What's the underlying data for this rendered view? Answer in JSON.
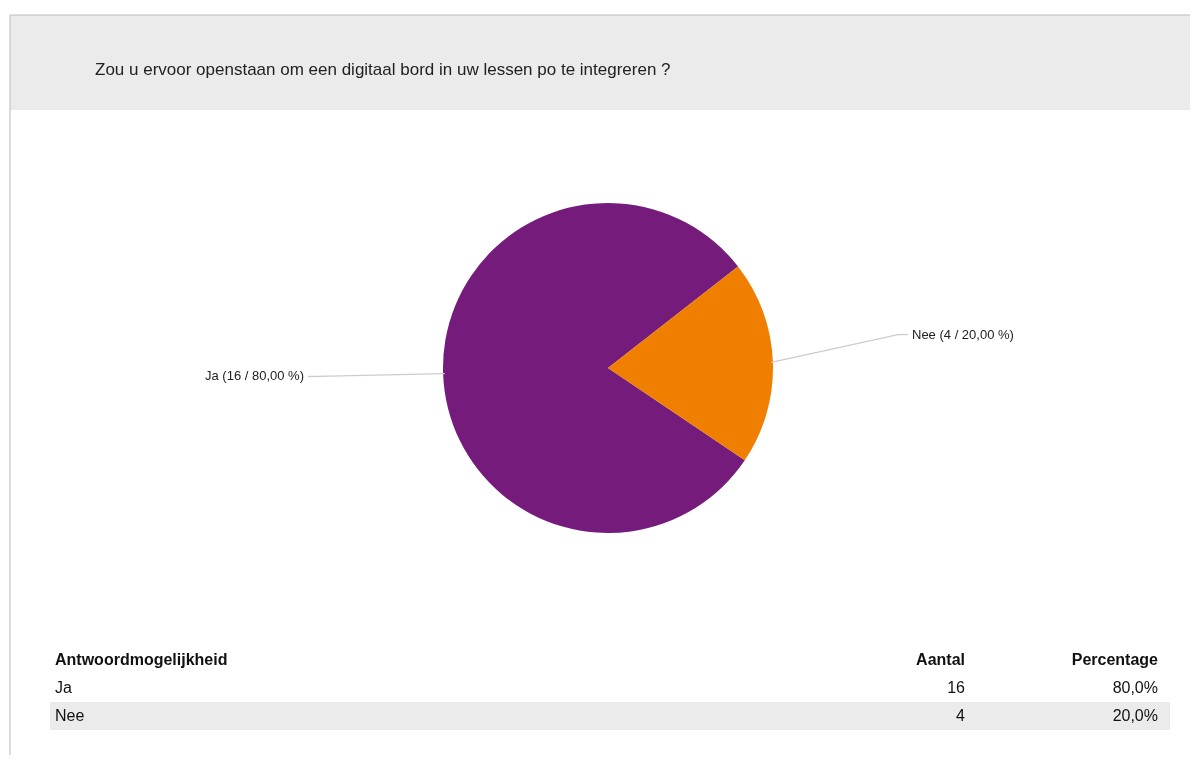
{
  "chart_data": {
    "type": "pie",
    "title": "Zou u ervoor openstaan om een digitaal bord in uw lessen po te integreren ?",
    "categories": [
      "Ja",
      "Nee"
    ],
    "values": [
      16,
      4
    ],
    "colors": [
      "#741b7c",
      "#f07f00"
    ],
    "value_labels": [
      "(16 / 80,00 %)",
      "(4 / 20,00 %)"
    ],
    "annotations": [
      "Antwoordmogelijkheid",
      "Aantal",
      "Percentage",
      "Ja",
      "16",
      "80,0%",
      "Nee",
      "4",
      "20,0%"
    ]
  }
}
